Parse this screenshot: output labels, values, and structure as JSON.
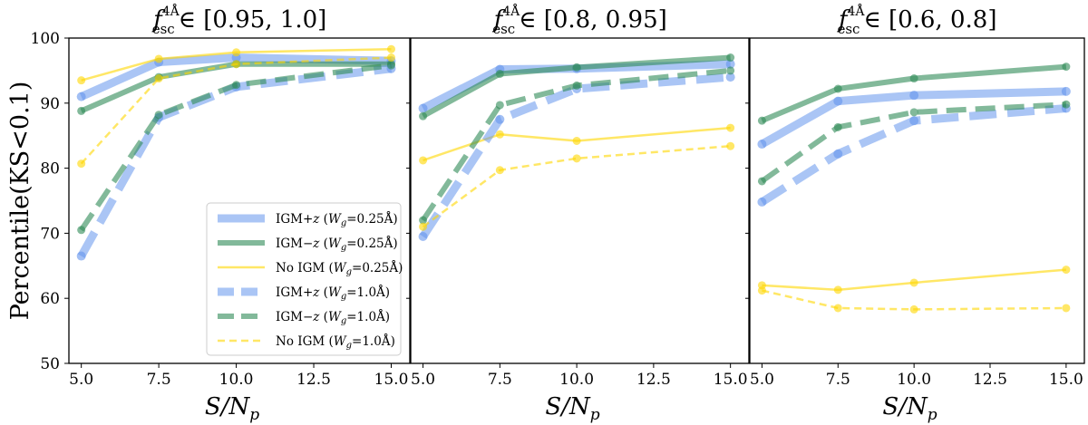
{
  "chart_data": [
    {
      "type": "line",
      "title": "f_esc^4Å ∈ [0.95, 1.0]",
      "title_parts": {
        "base": "f",
        "sub": "esc",
        "sup": "4Å",
        "range": "∈ [0.95, 1.0]"
      },
      "xlabel": "S/N_p",
      "xlabel_parts": {
        "main": "S/N",
        "sub": "p"
      },
      "ylabel": "Percentile(KS<0.1)",
      "x": [
        5.0,
        7.5,
        10.0,
        15.0
      ],
      "xlim": [
        4.6,
        15.6
      ],
      "ylim": [
        50,
        100
      ],
      "xticks": [
        "5.0",
        "7.5",
        "10.0",
        "12.5",
        "15.0"
      ],
      "yticks": [
        "50",
        "60",
        "70",
        "80",
        "90",
        "100"
      ],
      "series": [
        {
          "name": "IGM+z (Wg=0.25Å)",
          "values": [
            91.0,
            96.3,
            97.0,
            96.5
          ],
          "color": "#6495ed",
          "style": "solid",
          "width": "thick"
        },
        {
          "name": "IGM−z (Wg=0.25Å)",
          "values": [
            88.8,
            94.0,
            96.0,
            96.0
          ],
          "color": "#2e8b57",
          "style": "solid",
          "width": "medium"
        },
        {
          "name": "No IGM (Wg=0.25Å)",
          "values": [
            93.5,
            96.8,
            97.8,
            98.3
          ],
          "color": "#ffd700",
          "style": "solid",
          "width": "thin"
        },
        {
          "name": "IGM+z (Wg=1.0Å)",
          "values": [
            66.5,
            87.8,
            92.5,
            95.3
          ],
          "color": "#6495ed",
          "style": "dashed",
          "width": "thick"
        },
        {
          "name": "IGM−z (Wg=1.0Å)",
          "values": [
            70.5,
            88.2,
            92.8,
            95.8
          ],
          "color": "#2e8b57",
          "style": "dashed",
          "width": "medium"
        },
        {
          "name": "No IGM (Wg=1.0Å)",
          "values": [
            80.7,
            93.8,
            96.0,
            97.0
          ],
          "color": "#ffd700",
          "style": "dashed",
          "width": "thin"
        }
      ],
      "legend": {
        "location": "lower-right",
        "entries": [
          {
            "label": "IGM+z (Wg=0.25Å)",
            "text": "IGM+",
            "var": "z",
            "param": "Wg",
            "param_sub": "g",
            "eq": "=0.25Å"
          },
          {
            "label": "IGM−z (Wg=0.25Å)",
            "text": "IGM−",
            "var": "z",
            "param": "Wg",
            "param_sub": "g",
            "eq": "=0.25Å"
          },
          {
            "label": "No IGM (Wg=0.25Å)",
            "text": "No IGM",
            "var": "",
            "param": "Wg",
            "param_sub": "g",
            "eq": "=0.25Å"
          },
          {
            "label": "IGM+z (Wg=1.0Å)",
            "text": "IGM+",
            "var": "z",
            "param": "Wg",
            "param_sub": "g",
            "eq": "=1.0Å"
          },
          {
            "label": "IGM−z (Wg=1.0Å)",
            "text": "IGM−",
            "var": "z",
            "param": "Wg",
            "param_sub": "g",
            "eq": "=1.0Å"
          },
          {
            "label": "No IGM (Wg=1.0Å)",
            "text": "No IGM",
            "var": "",
            "param": "Wg",
            "param_sub": "g",
            "eq": "=1.0Å"
          }
        ]
      }
    },
    {
      "type": "line",
      "title": "f_esc^4Å ∈ [0.8, 0.95]",
      "title_parts": {
        "base": "f",
        "sub": "esc",
        "sup": "4Å",
        "range": "∈ [0.8, 0.95]"
      },
      "xlabel": "S/N_p",
      "xlabel_parts": {
        "main": "S/N",
        "sub": "p"
      },
      "x": [
        5.0,
        7.5,
        10.0,
        15.0
      ],
      "xlim": [
        4.6,
        15.6
      ],
      "ylim": [
        50,
        100
      ],
      "xticks": [
        "5.0",
        "7.5",
        "10.0",
        "12.5",
        "15.0"
      ],
      "series": [
        {
          "name": "IGM+z (Wg=0.25Å)",
          "values": [
            89.2,
            95.2,
            95.3,
            96.0
          ],
          "color": "#6495ed",
          "style": "solid",
          "width": "thick"
        },
        {
          "name": "IGM−z (Wg=0.25Å)",
          "values": [
            88.0,
            94.5,
            95.5,
            97.0
          ],
          "color": "#2e8b57",
          "style": "solid",
          "width": "medium"
        },
        {
          "name": "No IGM (Wg=0.25Å)",
          "values": [
            81.2,
            85.2,
            84.2,
            86.2
          ],
          "color": "#ffd700",
          "style": "solid",
          "width": "thin"
        },
        {
          "name": "IGM+z (Wg=1.0Å)",
          "values": [
            69.5,
            87.5,
            92.2,
            94.0
          ],
          "color": "#6495ed",
          "style": "dashed",
          "width": "thick"
        },
        {
          "name": "IGM−z (Wg=1.0Å)",
          "values": [
            72.0,
            89.7,
            92.7,
            95.0
          ],
          "color": "#2e8b57",
          "style": "dashed",
          "width": "medium"
        },
        {
          "name": "No IGM (Wg=1.0Å)",
          "values": [
            71.0,
            79.7,
            81.5,
            83.4
          ],
          "color": "#ffd700",
          "style": "dashed",
          "width": "thin"
        }
      ]
    },
    {
      "type": "line",
      "title": "f_esc^4Å ∈ [0.6, 0.8]",
      "title_parts": {
        "base": "f",
        "sub": "esc",
        "sup": "4Å",
        "range": "∈ [0.6, 0.8]"
      },
      "xlabel": "S/N_p",
      "xlabel_parts": {
        "main": "S/N",
        "sub": "p"
      },
      "x": [
        5.0,
        7.5,
        10.0,
        15.0
      ],
      "xlim": [
        4.6,
        15.6
      ],
      "ylim": [
        50,
        100
      ],
      "xticks": [
        "5.0",
        "7.5",
        "10.0",
        "12.5",
        "15.0"
      ],
      "series": [
        {
          "name": "IGM+z (Wg=0.25Å)",
          "values": [
            83.7,
            90.3,
            91.2,
            91.8
          ],
          "color": "#6495ed",
          "style": "solid",
          "width": "thick"
        },
        {
          "name": "IGM−z (Wg=0.25Å)",
          "values": [
            87.3,
            92.2,
            93.8,
            95.6
          ],
          "color": "#2e8b57",
          "style": "solid",
          "width": "medium"
        },
        {
          "name": "No IGM (Wg=0.25Å)",
          "values": [
            62.0,
            61.3,
            62.4,
            64.4
          ],
          "color": "#ffd700",
          "style": "solid",
          "width": "thin"
        },
        {
          "name": "IGM+z (Wg=1.0Å)",
          "values": [
            74.8,
            82.2,
            87.3,
            89.2
          ],
          "color": "#6495ed",
          "style": "dashed",
          "width": "thick"
        },
        {
          "name": "IGM−z (Wg=1.0Å)",
          "values": [
            78.0,
            86.3,
            88.6,
            89.8
          ],
          "color": "#2e8b57",
          "style": "dashed",
          "width": "medium"
        },
        {
          "name": "No IGM (Wg=1.0Å)",
          "values": [
            61.2,
            58.5,
            58.3,
            58.5
          ],
          "color": "#ffd700",
          "style": "dashed",
          "width": "thin"
        }
      ]
    }
  ]
}
